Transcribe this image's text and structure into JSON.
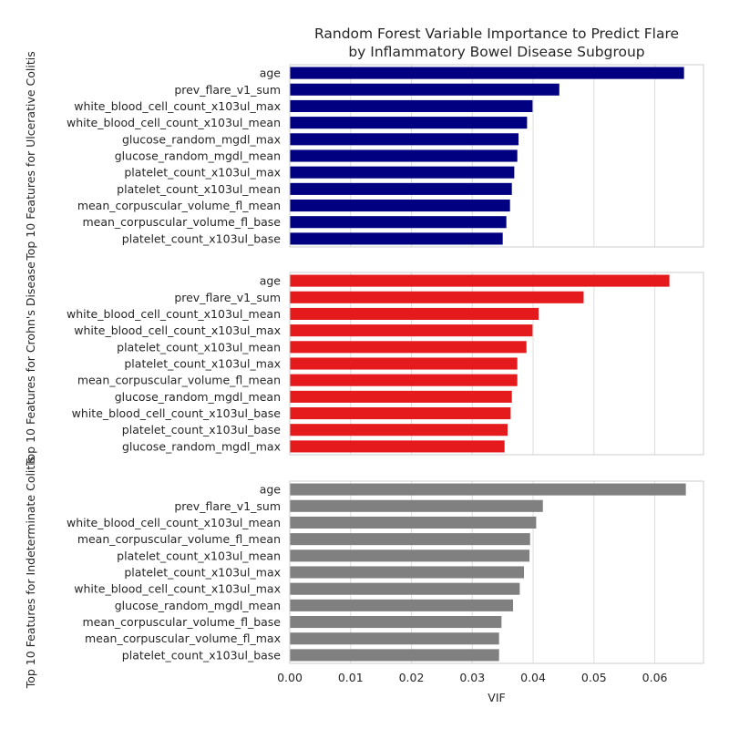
{
  "chart_data": {
    "type": "bar",
    "orientation": "horizontal",
    "title": [
      "Random Forest Variable Importance to Predict Flare",
      "by Inflammatory Bowel Disease Subgroup"
    ],
    "xlabel": "VIF",
    "xlim": [
      0,
      0.068
    ],
    "x_ticks": [
      "0.00",
      "0.01",
      "0.02",
      "0.03",
      "0.04",
      "0.05",
      "0.06"
    ],
    "grid": true,
    "panels": [
      {
        "ylabel": "Top 10 Features for Ulcerative Colitis",
        "color": "#000080",
        "categories": [
          "age",
          "prev_flare_v1_sum",
          "white_blood_cell_count_x103ul_max",
          "white_blood_cell_count_x103ul_mean",
          "glucose_random_mgdl_max",
          "glucose_random_mgdl_mean",
          "platelet_count_x103ul_max",
          "platelet_count_x103ul_mean",
          "mean_corpuscular_volume_fl_mean",
          "mean_corpuscular_volume_fl_base",
          "platelet_count_x103ul_base"
        ],
        "values": [
          0.0648,
          0.0443,
          0.0399,
          0.039,
          0.0376,
          0.0374,
          0.0369,
          0.0365,
          0.0362,
          0.0356,
          0.035
        ]
      },
      {
        "ylabel": "Top 10 Features for Crohn's Disease",
        "color": "#e41a1c",
        "categories": [
          "age",
          "prev_flare_v1_sum",
          "white_blood_cell_count_x103ul_mean",
          "white_blood_cell_count_x103ul_max",
          "platelet_count_x103ul_mean",
          "platelet_count_x103ul_max",
          "mean_corpuscular_volume_fl_mean",
          "glucose_random_mgdl_mean",
          "white_blood_cell_count_x103ul_base",
          "platelet_count_x103ul_base",
          "glucose_random_mgdl_max"
        ],
        "values": [
          0.0624,
          0.0483,
          0.0409,
          0.0399,
          0.0389,
          0.0374,
          0.0374,
          0.0365,
          0.0363,
          0.0358,
          0.0353
        ]
      },
      {
        "ylabel": "Top 10 Features for Indeterminate Colitis",
        "color": "#808080",
        "categories": [
          "age",
          "prev_flare_v1_sum",
          "white_blood_cell_count_x103ul_mean",
          "mean_corpuscular_volume_fl_mean",
          "platelet_count_x103ul_mean",
          "platelet_count_x103ul_max",
          "white_blood_cell_count_x103ul_max",
          "glucose_random_mgdl_mean",
          "mean_corpuscular_volume_fl_base",
          "mean_corpuscular_volume_fl_max",
          "platelet_count_x103ul_base"
        ],
        "values": [
          0.0651,
          0.0416,
          0.0405,
          0.0395,
          0.0394,
          0.0385,
          0.0378,
          0.0367,
          0.0348,
          0.0344,
          0.0344
        ]
      }
    ]
  }
}
